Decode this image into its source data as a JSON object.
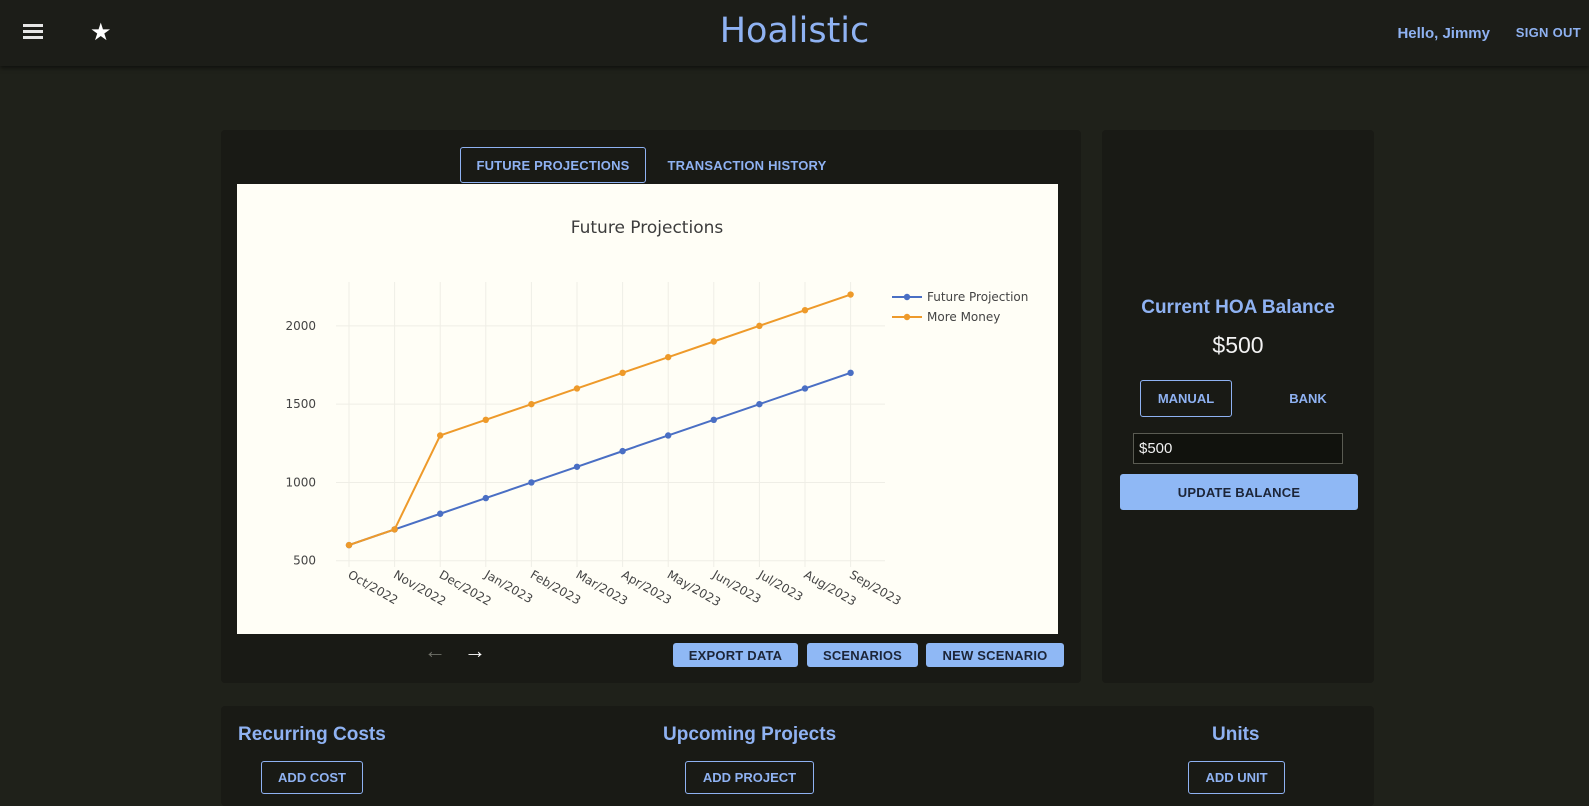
{
  "header": {
    "title": "Hoalistic",
    "greeting": "Hello, Jimmy",
    "sign_out": "SIGN OUT"
  },
  "tabs": [
    {
      "label": "FUTURE PROJECTIONS",
      "active": true
    },
    {
      "label": "TRANSACTION HISTORY",
      "active": false
    }
  ],
  "chart_actions": {
    "export": "EXPORT DATA",
    "scenarios": "SCENARIOS",
    "new_scenario": "NEW SCENARIO"
  },
  "balance": {
    "title": "Current HOA Balance",
    "amount": "$500",
    "mode_manual": "MANUAL",
    "mode_bank": "BANK",
    "input_value": "$500",
    "update_button": "UPDATE BALANCE"
  },
  "sections": {
    "recurring_title": "Recurring Costs",
    "recurring_button": "ADD COST",
    "projects_title": "Upcoming Projects",
    "projects_button": "ADD PROJECT",
    "units_title": "Units",
    "units_button": "ADD UNIT"
  },
  "colors": {
    "accent": "#8fb2f2",
    "series_blue": "#4a6fc4",
    "series_orange": "#ee9a2a"
  },
  "icons": {
    "menu": "menu-icon",
    "favorite": "star-icon",
    "prev": "arrow-left-icon",
    "next": "arrow-right-icon"
  },
  "chart_data": {
    "type": "line",
    "title": "Future Projections",
    "xlabel": "",
    "ylabel": "",
    "categories": [
      "Oct/2022",
      "Nov/2022",
      "Dec/2022",
      "Jan/2023",
      "Feb/2023",
      "Mar/2023",
      "Apr/2023",
      "May/2023",
      "Jun/2023",
      "Jul/2023",
      "Aug/2023",
      "Sep/2023"
    ],
    "series": [
      {
        "name": "Future Projection",
        "color": "#4a6fc4",
        "values": [
          600,
          700,
          800,
          900,
          1000,
          1100,
          1200,
          1300,
          1400,
          1500,
          1600,
          1700
        ]
      },
      {
        "name": "More Money",
        "color": "#ee9a2a",
        "values": [
          600,
          700,
          1300,
          1400,
          1500,
          1600,
          1700,
          1800,
          1900,
          2000,
          2100,
          2200
        ]
      }
    ],
    "yticks": [
      500,
      1000,
      1500,
      2000
    ],
    "ylim": [
      460,
      2280
    ],
    "grid": true,
    "legend": "top-right"
  }
}
